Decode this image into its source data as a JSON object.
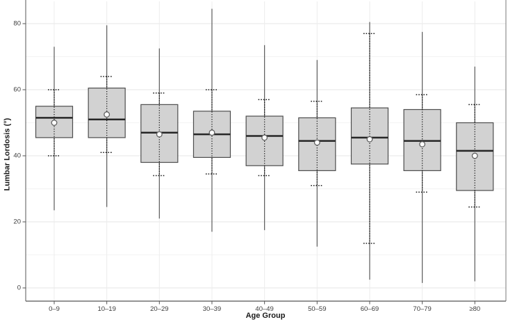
{
  "chart_data": {
    "type": "boxplot",
    "title": "",
    "xlabel": "Age Group",
    "ylabel": "Lumbar Lordosis (°)",
    "ylim": [
      0,
      85
    ],
    "yticks": [
      0,
      20,
      40,
      60,
      80
    ],
    "grid": "horizontal major every 20 + minor every 10, vertical line per category, no top border",
    "legend": "none",
    "marker_semantics": "box = IQR with median line; white circle = mean; dotted vertical line with dotted caps = mean ± SD span; solid thin line = min–max whiskers",
    "categories": [
      "0–9",
      "10–19",
      "20–29",
      "30–39",
      "40–49",
      "50–59",
      "60–69",
      "70–79",
      "≥80"
    ],
    "boxes": [
      {
        "category": "0–9",
        "min": 23.5,
        "q1": 45.5,
        "median": 51.5,
        "q3": 55,
        "max": 73,
        "mean": 50,
        "sd_low": 40,
        "sd_high": 60
      },
      {
        "category": "10–19",
        "min": 24.5,
        "q1": 45.5,
        "median": 51,
        "q3": 60.5,
        "max": 79.5,
        "mean": 52.5,
        "sd_low": 41,
        "sd_high": 64
      },
      {
        "category": "20–29",
        "min": 21,
        "q1": 38,
        "median": 47,
        "q3": 55.5,
        "max": 72.5,
        "mean": 46.5,
        "sd_low": 34,
        "sd_high": 59
      },
      {
        "category": "30–39",
        "min": 17,
        "q1": 39.5,
        "median": 46.5,
        "q3": 53.5,
        "max": 84.5,
        "mean": 47,
        "sd_low": 34.5,
        "sd_high": 60
      },
      {
        "category": "40–49",
        "min": 17.5,
        "q1": 37,
        "median": 46,
        "q3": 52,
        "max": 73.5,
        "mean": 45.5,
        "sd_low": 34,
        "sd_high": 57
      },
      {
        "category": "50–59",
        "min": 12.5,
        "q1": 35.5,
        "median": 44.5,
        "q3": 51.5,
        "max": 69,
        "mean": 44,
        "sd_low": 31,
        "sd_high": 56.5
      },
      {
        "category": "60–69",
        "min": 2.5,
        "q1": 37.5,
        "median": 45.5,
        "q3": 54.5,
        "max": 80.5,
        "mean": 45,
        "sd_low": 13.5,
        "sd_high": 77
      },
      {
        "category": "70–79",
        "min": 1.5,
        "q1": 35.5,
        "median": 44.5,
        "q3": 54,
        "max": 77.5,
        "mean": 43.5,
        "sd_low": 29,
        "sd_high": 58.5
      },
      {
        "category": "≥80",
        "min": 2,
        "q1": 29.5,
        "median": 41.5,
        "q3": 50,
        "max": 67,
        "mean": 40,
        "sd_low": 24.5,
        "sd_high": 55.5
      }
    ],
    "colors": {
      "background": "#ffffff",
      "box_fill": "#d2d2d2",
      "box_border": "#4d4d4d",
      "median_line": "#262626",
      "whisker_line": "#5a5a5a",
      "dotted_line": "#1a1a1a",
      "mean_fill": "#ffffff",
      "mean_stroke": "#606060",
      "grid_major": "#e6e6e6",
      "grid_minor": "#f3f3f3",
      "grid_vertical": "#ececec",
      "axis_line": "#555555",
      "panel_right_border": "#7a7a7a",
      "tick_text": "#3d3d3d",
      "title_text": "#1a1a1a"
    }
  }
}
